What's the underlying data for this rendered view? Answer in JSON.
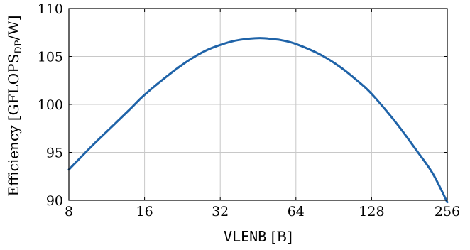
{
  "chart_data": {
    "type": "line",
    "title": "",
    "xlabel": "VLENB [B]",
    "xlabel_parts": {
      "mono": "VLENB",
      "unit": " [B]"
    },
    "ylabel": "Efficiency [GFLOPSDP/W]",
    "ylabel_parts": {
      "main": "Efficiency [GFLOPS",
      "sub": "DP",
      "tail": "/W]"
    },
    "x_scale": "log2",
    "xlim": [
      8,
      256
    ],
    "ylim": [
      90,
      110
    ],
    "xticks": [
      8,
      16,
      32,
      64,
      128,
      256
    ],
    "xtick_labels": [
      "8",
      "16",
      "32",
      "64",
      "128",
      "256"
    ],
    "yticks": [
      90,
      95,
      100,
      105,
      110
    ],
    "ytick_labels": [
      "90",
      "95",
      "100",
      "105",
      "110"
    ],
    "grid": true,
    "line_color": "#1f63a8",
    "series": [
      {
        "x": [
          8,
          10,
          12,
          14,
          16,
          20,
          24,
          28,
          32,
          36,
          40,
          44,
          48,
          52,
          56,
          64,
          80,
          96,
          112,
          128,
          160,
          192,
          224,
          256
        ],
        "y": [
          93.2,
          95.8,
          97.8,
          99.5,
          101.0,
          103.1,
          104.6,
          105.6,
          106.2,
          106.6,
          106.8,
          106.9,
          106.9,
          106.8,
          106.7,
          106.3,
          105.2,
          103.9,
          102.5,
          101.1,
          98.1,
          95.3,
          92.8,
          89.8
        ]
      }
    ]
  }
}
